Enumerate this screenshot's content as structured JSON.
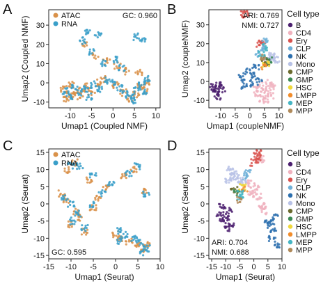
{
  "figure": {
    "colors": {
      "ATAC": "#d99149",
      "RNA": "#3a9fc9",
      "B": "#4b1f6f",
      "CD4": "#f0b3bf",
      "Ery": "#d9534f",
      "CLP": "#6fb0d8",
      "NK": "#2c6fae",
      "Mono": "#b8c2e6",
      "CMP": "#6b6b2e",
      "GMP": "#3b8a55",
      "HSC": "#f0d83a",
      "LMPP": "#f28c2a",
      "MEP": "#45b5c4",
      "MPP": "#b08a5a"
    }
  },
  "chart_data": [
    {
      "panel": "A",
      "type": "scatter",
      "xlabel": "Umap1 (Coupled NMF)",
      "ylabel": "Umap2 (Coupled NMF)",
      "xlim": [
        -15,
        11
      ],
      "ylim": [
        -13,
        38
      ],
      "xticks": [
        "-10",
        "-5",
        "0",
        "5",
        "10"
      ],
      "yticks": [
        "-10",
        "0",
        "10",
        "20",
        "30"
      ],
      "legend": [
        "ATAC",
        "RNA"
      ],
      "annotation": "GC: 0.960",
      "series": [
        {
          "name": "ATAC",
          "x": [
            -11.5,
            -10.5,
            -9.8,
            -11.0,
            -8.5,
            -7.0,
            -6.2,
            -5.0,
            -3.5,
            -2.0,
            0.5,
            2.5,
            4.0,
            5.5,
            6.5,
            7.5,
            3.0,
            1.0,
            -1.5,
            -4.0,
            -6.5,
            6.0,
            7.8,
            -9.0
          ],
          "y": [
            -3,
            -6,
            -1,
            -8,
            -4,
            -6,
            -2,
            -5,
            0,
            2,
            -1,
            -5,
            -8,
            -6,
            -2,
            -4,
            6,
            9,
            11,
            14,
            20,
            5,
            0,
            -7
          ]
        },
        {
          "name": "RNA",
          "x": [
            -11.0,
            -10.0,
            -9.0,
            -8.0,
            -6.5,
            -5.5,
            -4.5,
            -3.0,
            -1.5,
            0.0,
            1.5,
            3.0,
            4.5,
            5.5,
            6.8,
            7.2,
            2.0,
            0.5,
            -2.5,
            -5.0,
            -7.0,
            5.0,
            8.0,
            -3.5,
            -6.0,
            5.5,
            7.0
          ],
          "y": [
            -4,
            -7,
            -2,
            -5,
            -3,
            -7,
            -1,
            -3,
            1,
            0,
            -3,
            -6,
            -7,
            -3,
            -1,
            -5,
            8,
            12,
            10,
            16,
            22,
            -9,
            2,
            25,
            27,
            24,
            23
          ]
        }
      ]
    },
    {
      "panel": "B",
      "type": "scatter",
      "xlabel": "Umap1 (coupleNMF)",
      "ylabel": "Umap2 (coupleNMF)",
      "xlim": [
        -14,
        11
      ],
      "ylim": [
        -14,
        38
      ],
      "xticks": [
        "-10",
        "-5",
        "0",
        "5",
        "10"
      ],
      "yticks": [
        "-10",
        "0",
        "10",
        "20",
        "30"
      ],
      "annotations": [
        "ARI: 0.769",
        "NMI: 0.727"
      ],
      "legend_title": "Cell type",
      "legend": [
        "B",
        "CD4",
        "Ery",
        "CLP",
        "NK",
        "Mono",
        "CMP",
        "GMP",
        "HSC",
        "LMPP",
        "MEP",
        "MPP"
      ],
      "series": [
        {
          "name": "B",
          "x": [
            -12.5,
            -11.5,
            -10.5,
            -11.0,
            -12.0,
            -9.5
          ],
          "y": [
            -3,
            -6,
            -2,
            -8,
            -5,
            -4
          ]
        },
        {
          "name": "CD4",
          "x": [
            2,
            3,
            4,
            5,
            6,
            7,
            8,
            3.5,
            5.5,
            6.5
          ],
          "y": [
            -4,
            -7,
            -9,
            -6,
            -5,
            -8,
            -3,
            -2,
            -10,
            -1
          ]
        },
        {
          "name": "Ery",
          "x": [
            -2,
            -1.5,
            3.5,
            4.0
          ],
          "y": [
            36,
            35.5,
            20,
            21
          ]
        },
        {
          "name": "CLP",
          "x": [
            3,
            4,
            5
          ],
          "y": [
            15,
            18,
            22
          ]
        },
        {
          "name": "NK",
          "x": [
            -3,
            -1,
            1,
            0,
            -2,
            2,
            3
          ],
          "y": [
            2,
            5,
            3,
            -1,
            -2,
            7,
            0
          ]
        },
        {
          "name": "Mono",
          "x": [
            6,
            7,
            8,
            9,
            7.5
          ],
          "y": [
            12,
            13,
            12,
            11,
            14
          ]
        },
        {
          "name": "CMP",
          "x": [
            6,
            5
          ],
          "y": [
            10,
            12
          ]
        },
        {
          "name": "GMP",
          "x": [
            6.5
          ],
          "y": [
            11
          ]
        },
        {
          "name": "HSC",
          "x": [
            5.5
          ],
          "y": [
            9
          ]
        },
        {
          "name": "LMPP",
          "x": [
            5
          ],
          "y": [
            8
          ]
        },
        {
          "name": "MEP",
          "x": [
            4,
            5.5
          ],
          "y": [
            14,
            18
          ]
        },
        {
          "name": "MPP",
          "x": [
            4.5
          ],
          "y": [
            13
          ]
        }
      ]
    },
    {
      "panel": "C",
      "type": "scatter",
      "xlabel": "Umap1 (Seurat)",
      "ylabel": "Umap2 (Seurat)",
      "xlim": [
        -15,
        10
      ],
      "ylim": [
        -16,
        16
      ],
      "xticks": [
        "-15",
        "-10",
        "-5",
        "0",
        "5",
        "10"
      ],
      "yticks": [
        "-15",
        "-10",
        "-5",
        "0",
        "5",
        "10",
        "15"
      ],
      "legend": [
        "ATAC",
        "RNA"
      ],
      "annotation": "GC: 0.595",
      "series": [
        {
          "name": "ATAC",
          "x": [
            -12,
            -11,
            -9,
            -8,
            -10,
            -7,
            -5,
            -4,
            0,
            1,
            3,
            5,
            6,
            7,
            -2,
            2,
            4,
            6.5,
            -9,
            -11,
            -6
          ],
          "y": [
            3,
            1,
            -2,
            -4,
            -6,
            -8,
            -1,
            2,
            -9,
            -10,
            -11,
            -12,
            -13,
            -12,
            5,
            8,
            10,
            4,
            12,
            10,
            7
          ]
        },
        {
          "name": "RNA",
          "x": [
            -11.5,
            -10,
            -8.5,
            -9.5,
            -7,
            -5,
            -3,
            1,
            2,
            4,
            5.5,
            7,
            -1,
            3,
            5,
            6.8,
            -8,
            -10,
            -5,
            0.5,
            6
          ],
          "y": [
            2,
            0,
            -3,
            -5,
            -7,
            0,
            3,
            -8,
            -9,
            -10,
            -11,
            -13,
            6,
            9,
            11,
            3,
            11,
            11,
            8,
            -11,
            -14
          ]
        }
      ]
    },
    {
      "panel": "D",
      "type": "scatter",
      "xlabel": "Umap1 (Seurat)",
      "ylabel": "Umap2 (Seurat)",
      "xlim": [
        -16,
        10
      ],
      "ylim": [
        -16,
        16
      ],
      "xticks": [
        "-15",
        "-10",
        "-5",
        "0",
        "5",
        "10"
      ],
      "yticks": [
        "-15",
        "-10",
        "-5",
        "0",
        "5",
        "10",
        "15"
      ],
      "annotations": [
        "ARI: 0.704",
        "NMI: 0.688"
      ],
      "legend_title": "Cell type",
      "legend": [
        "B",
        "CD4",
        "Ery",
        "CLP",
        "NK",
        "Mono",
        "CMP",
        "GMP",
        "HSC",
        "LMPP",
        "MEP",
        "MPP"
      ],
      "series": [
        {
          "name": "B",
          "x": [
            -12,
            -11,
            -10,
            -9,
            -8,
            -11.5,
            -9.5
          ],
          "y": [
            -3,
            -5,
            -4,
            -2,
            -6,
            -1,
            -7
          ]
        },
        {
          "name": "CD4",
          "x": [
            -2,
            0,
            2,
            3,
            4,
            -1,
            1,
            3.5,
            2.5
          ],
          "y": [
            6,
            4,
            2,
            0,
            -2,
            3,
            5,
            -1,
            13
          ]
        },
        {
          "name": "Ery",
          "x": [
            0,
            1,
            2,
            1.5
          ],
          "y": [
            12,
            14,
            15,
            13
          ]
        },
        {
          "name": "CLP",
          "x": [
            -3,
            -2
          ],
          "y": [
            8,
            9
          ]
        },
        {
          "name": "NK",
          "x": [
            5,
            6,
            7,
            6.5,
            7.5,
            8
          ],
          "y": [
            -5,
            -6,
            -8,
            -10,
            -4,
            -12
          ]
        },
        {
          "name": "Mono",
          "x": [
            -9,
            -8,
            -7,
            -6,
            -5,
            -4,
            -8.5
          ],
          "y": [
            7,
            8,
            9,
            8,
            7,
            6,
            10
          ]
        },
        {
          "name": "CMP",
          "x": [
            -7
          ],
          "y": [
            4
          ]
        },
        {
          "name": "GMP",
          "x": [
            -6
          ],
          "y": [
            3
          ]
        },
        {
          "name": "HSC",
          "x": [
            -4
          ],
          "y": [
            5
          ]
        },
        {
          "name": "LMPP",
          "x": [
            -3.5
          ],
          "y": [
            4
          ]
        },
        {
          "name": "MEP",
          "x": [
            -5,
            -4.5
          ],
          "y": [
            2,
            3
          ]
        },
        {
          "name": "MPP",
          "x": [
            -5.5
          ],
          "y": [
            1
          ]
        }
      ]
    }
  ],
  "panels": {
    "A": {
      "letter": "A"
    },
    "B": {
      "letter": "B"
    },
    "C": {
      "letter": "C"
    },
    "D": {
      "letter": "D"
    }
  }
}
